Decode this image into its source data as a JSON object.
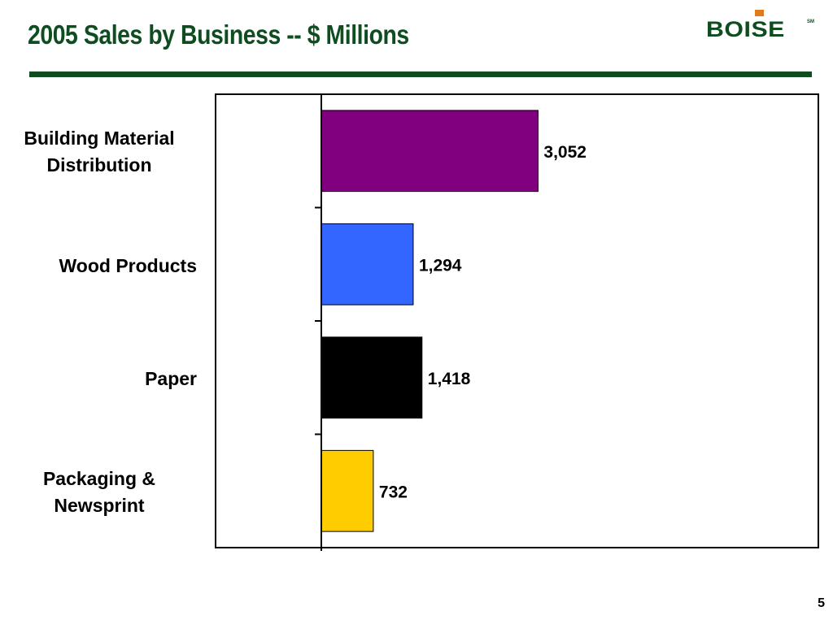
{
  "header": {
    "title": "2005 Sales by Business -- $ Millions",
    "logo_text": "BOISE",
    "logo_mark": "SM"
  },
  "colors": {
    "brand_green": "#0e4d1f",
    "logo_accent": "#e07a1f"
  },
  "chart_data": {
    "type": "bar",
    "orientation": "horizontal",
    "title": "2005 Sales by Business -- $ Millions",
    "categories": [
      "Building Material\nDistribution",
      "Wood Products",
      "Paper",
      "Packaging &\nNewsprint"
    ],
    "values": [
      3052,
      1294,
      1418,
      732
    ],
    "data_labels": [
      "3,052",
      "1,294",
      "1,418",
      "732"
    ],
    "bar_colors": [
      "#800080",
      "#3366ff",
      "#000000",
      "#ffcc00"
    ],
    "xlim": [
      0,
      7000
    ],
    "grid": false,
    "legend": "none"
  },
  "footer": {
    "page_number": "5"
  }
}
